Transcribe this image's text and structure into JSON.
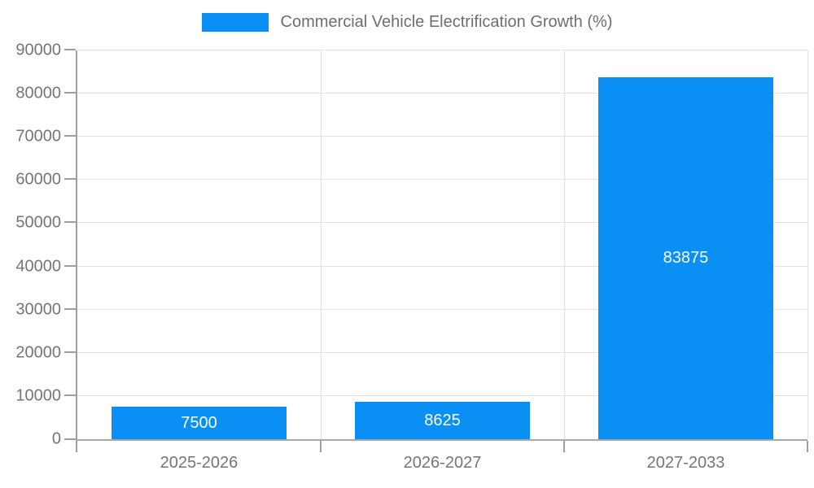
{
  "chart_data": {
    "type": "bar",
    "title": "Commercial Vehicle Electrification Growth (%)",
    "legend": {
      "label": "Commercial Vehicle Electrification Growth (%)",
      "position": "top-center"
    },
    "categories": [
      "2025-2026",
      "2026-2027",
      "2027-2033"
    ],
    "series": [
      {
        "name": "Commercial Vehicle Electrification Growth (%)",
        "values": [
          7500,
          8625,
          83875
        ]
      }
    ],
    "value_labels": [
      "7500",
      "8625",
      "83875"
    ],
    "xlabel": "",
    "ylabel": "",
    "ylim": [
      0,
      90000
    ],
    "ytick_step": 10000,
    "ytick_labels": [
      "0",
      "10000",
      "20000",
      "30000",
      "40000",
      "50000",
      "60000",
      "70000",
      "80000",
      "90000"
    ],
    "grid": true,
    "bar_width_fraction": 0.72,
    "colors": {
      "bar": "#0a90f5",
      "bar_label_text": "#ffffff",
      "axis": "#9e9e9e",
      "gridline": "#e2e2e2",
      "tick_text": "#757575",
      "legend_text": "#6e6e6e",
      "background": "#ffffff"
    }
  }
}
